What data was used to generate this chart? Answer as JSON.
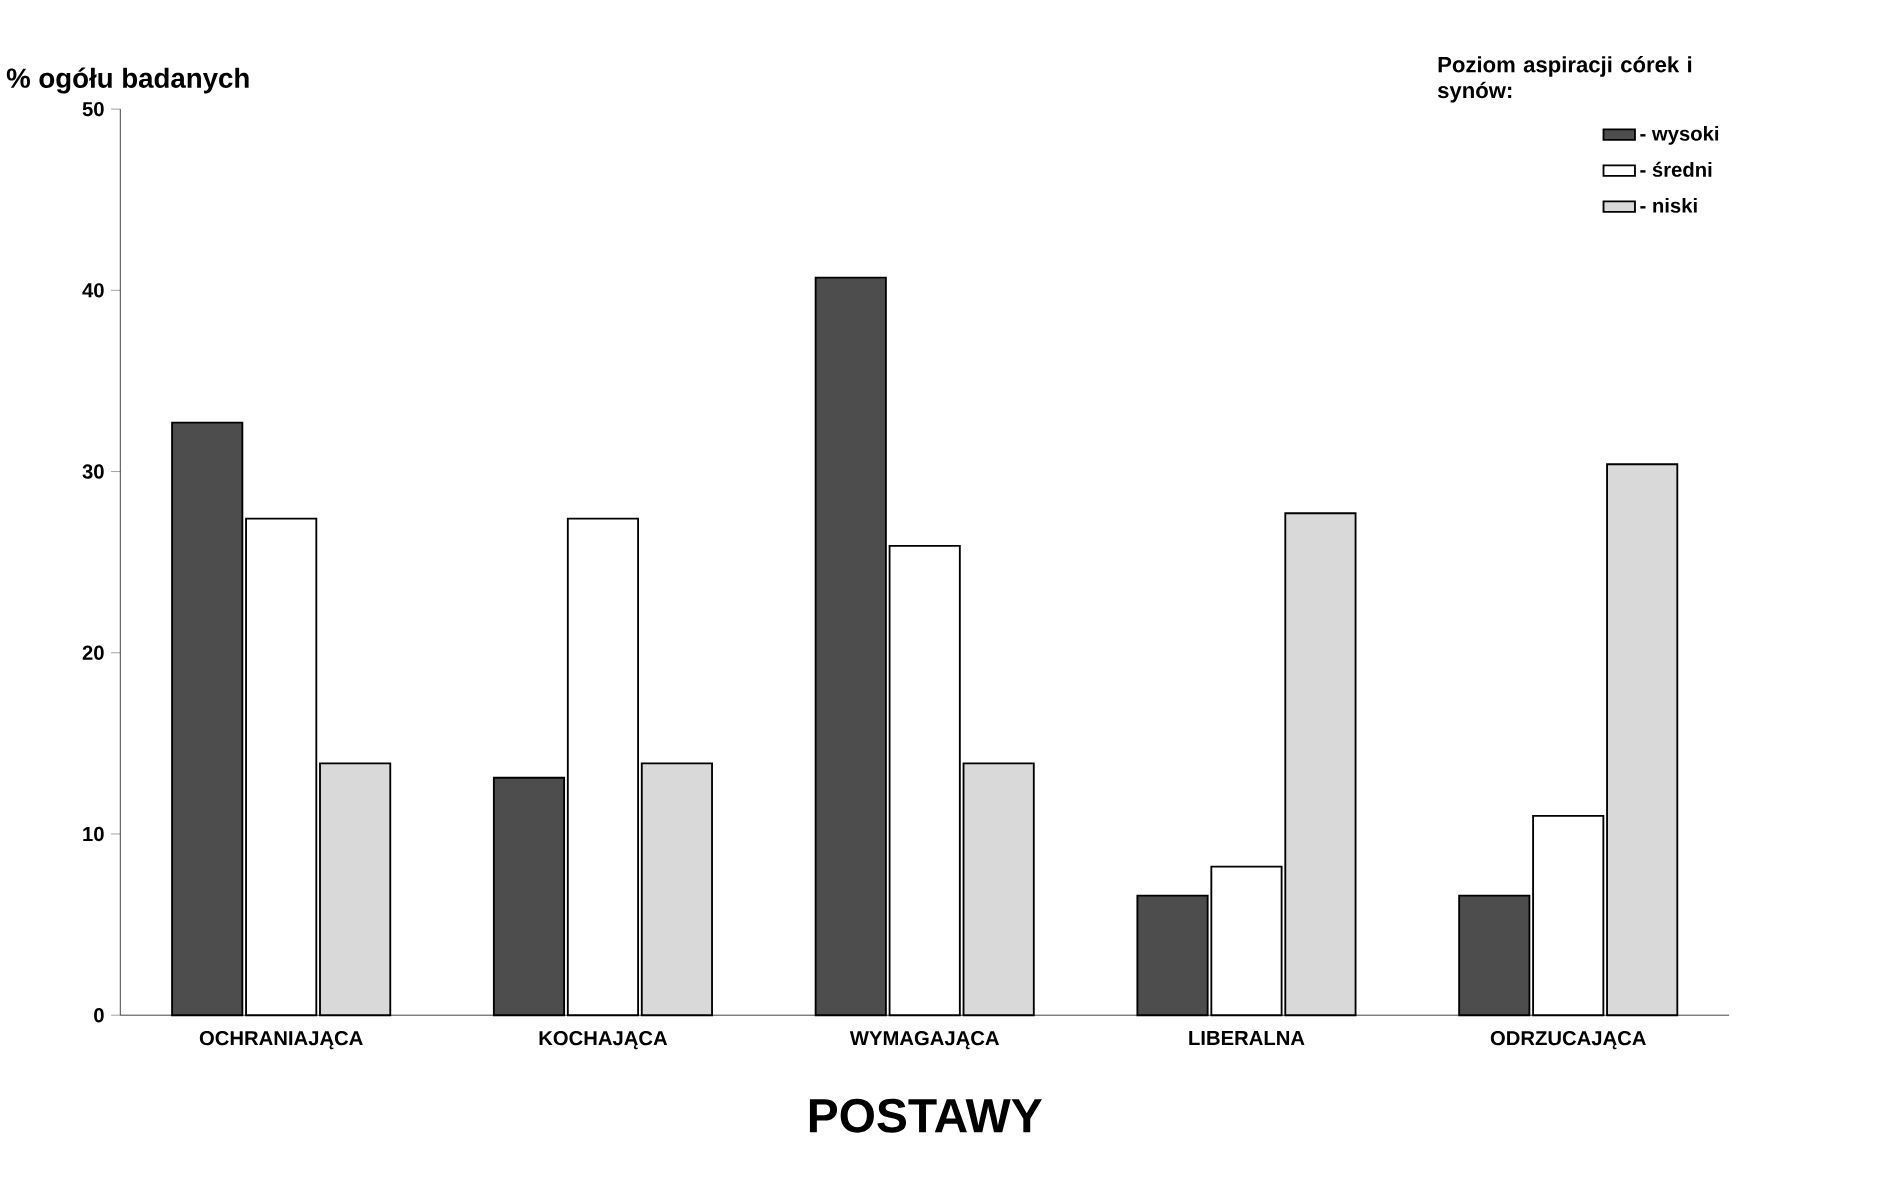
{
  "chart_data": {
    "type": "bar",
    "ylabel": "% ogółu badanych",
    "xlabel": "POSTAWY",
    "legend_title": "Poziom aspiracji córek i synów:",
    "categories": [
      "OCHRANIAJĄCA",
      "KOCHAJĄCA",
      "WYMAGAJĄCA",
      "LIBERALNA",
      "ODRZUCAJĄCA"
    ],
    "series": [
      {
        "name": "- wysoki",
        "color": "#4d4d4d",
        "values": [
          32.7,
          13.1,
          40.7,
          6.6,
          6.6
        ]
      },
      {
        "name": "- średni",
        "color": "#ffffff",
        "values": [
          27.4,
          27.4,
          25.9,
          8.2,
          11.0
        ]
      },
      {
        "name": "- niski",
        "color": "#d9d9d9",
        "values": [
          13.9,
          13.9,
          13.9,
          27.7,
          30.4
        ]
      }
    ],
    "ylim": [
      0,
      50
    ],
    "yticks": [
      0,
      10,
      20,
      30,
      40,
      50
    ],
    "grid": false,
    "legend": "top right"
  }
}
